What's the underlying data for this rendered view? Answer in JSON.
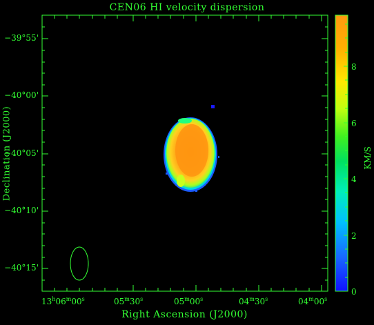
{
  "title": "CEN06   HI velocity dispersion",
  "xlabel": "Right Ascension (J2000)",
  "ylabel": "Declination (J2000)",
  "colorbar": {
    "label": "KM/S",
    "ticks": [
      "0",
      "2",
      "4",
      "6",
      "8"
    ]
  },
  "dec_ticks": [
    "−39°55'",
    "−40°00'",
    "−40°05'",
    "−40°10'",
    "−40°15'"
  ],
  "ra_ticks": [
    {
      "h": "13",
      "hu": "h",
      "m": "06",
      "mu": "m",
      "s": "00",
      "su": "s"
    },
    {
      "h": "",
      "hu": "",
      "m": "05",
      "mu": "m",
      "s": "30",
      "su": "s"
    },
    {
      "h": "",
      "hu": "",
      "m": "05",
      "mu": "m",
      "s": "00",
      "su": "s"
    },
    {
      "h": "",
      "hu": "",
      "m": "04",
      "mu": "m",
      "s": "30",
      "su": "s"
    },
    {
      "h": "",
      "hu": "",
      "m": "04",
      "mu": "m",
      "s": "00",
      "su": "s"
    }
  ],
  "colors": {
    "axis": "#33ff33",
    "background": "#000000"
  }
}
